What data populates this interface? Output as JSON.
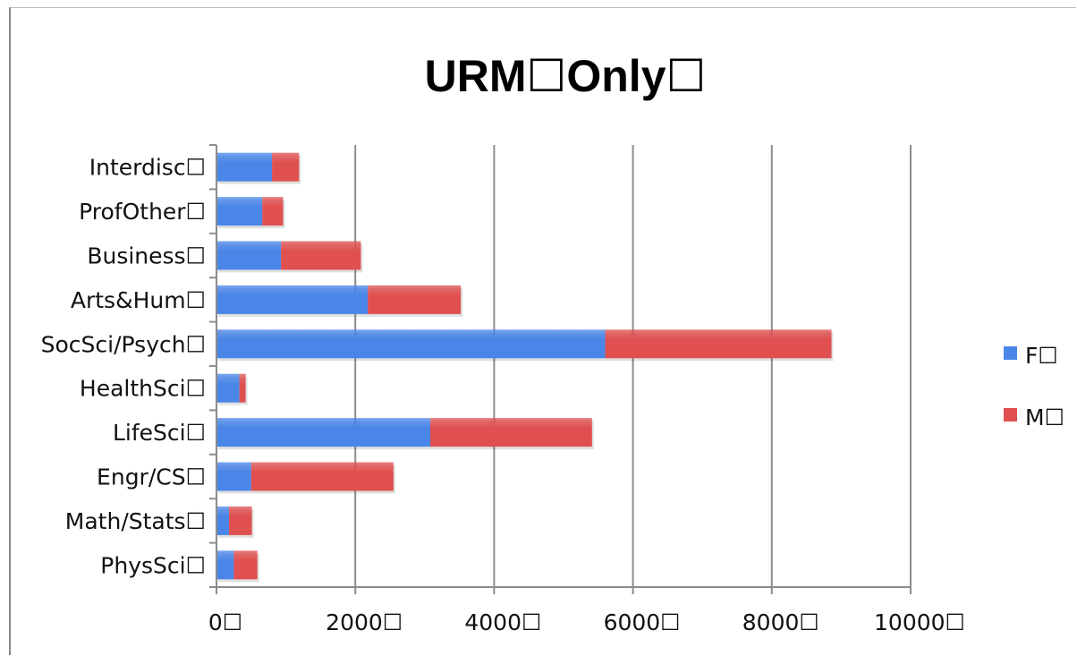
{
  "chart_data": {
    "type": "bar",
    "orientation": "horizontal",
    "stacked": true,
    "title": "URM☐Only☐",
    "categories": [
      "PhysSci☐",
      "Math/Stats☐",
      "Engr/CS☐",
      "LifeSci☐",
      "HealthSci☐",
      "SocSci/Psych☐",
      "Arts&Hum☐",
      "Business☐",
      "ProfOther☐",
      "Interdisc☐"
    ],
    "series": [
      {
        "name": "F☐",
        "color": "#4a86e8",
        "values": [
          250,
          180,
          500,
          3080,
          330,
          5600,
          2180,
          930,
          660,
          800
        ]
      },
      {
        "name": "M☐",
        "color": "#e05050",
        "values": [
          340,
          330,
          2050,
          2330,
          90,
          3260,
          1340,
          1150,
          300,
          390
        ]
      }
    ],
    "xlim": [
      0,
      10000
    ],
    "xticks": [
      "0☐",
      "2000☐",
      "4000☐",
      "6000☐",
      "8000☐",
      "10000☐"
    ],
    "xtick_values": [
      0,
      2000,
      4000,
      6000,
      8000,
      10000
    ],
    "grid": "vertical",
    "legend": "right"
  }
}
